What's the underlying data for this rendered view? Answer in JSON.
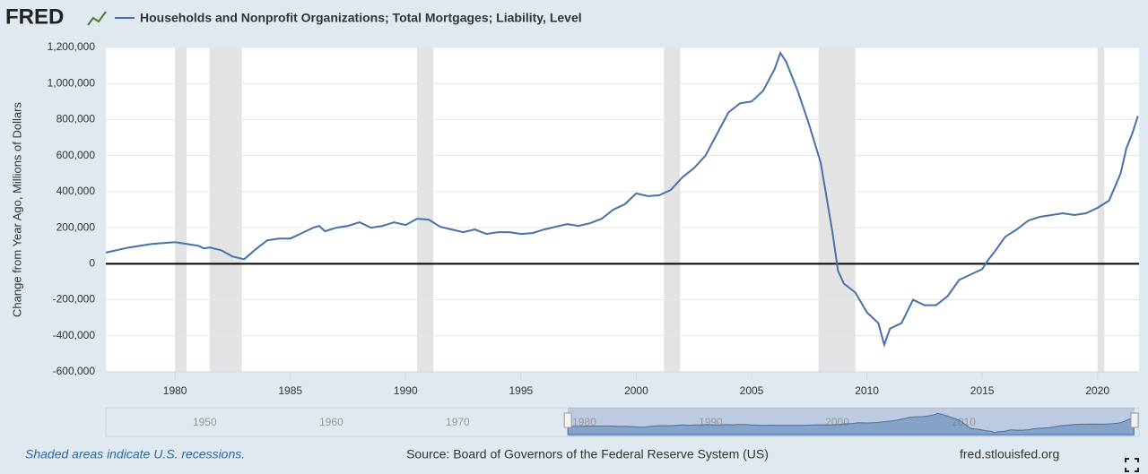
{
  "logo": "FRED",
  "note": "Shaded areas indicate U.S. recessions.",
  "source": "Source: Board of Governors of the Federal Reserve System (US)",
  "site": "fred.stlouisfed.org",
  "chart_data": {
    "type": "line",
    "ylabel": "Change from Year Ago, Millions of Dollars",
    "x": [
      1977,
      1978,
      1979,
      1980,
      1980.5,
      1981,
      1981.25,
      1981.5,
      1982,
      1982.5,
      1983,
      1983.5,
      1984,
      1984.5,
      1985,
      1985.5,
      1986,
      1986.25,
      1986.5,
      1987,
      1987.5,
      1988,
      1988.5,
      1989,
      1989.5,
      1990,
      1990.5,
      1991,
      1991.5,
      1992,
      1992.5,
      1993,
      1993.5,
      1994,
      1994.5,
      1995,
      1995.5,
      1996,
      1996.5,
      1997,
      1997.5,
      1998,
      1998.5,
      1999,
      1999.5,
      2000,
      2000.5,
      2001,
      2001.5,
      2002,
      2002.5,
      2003,
      2003.5,
      2004,
      2004.5,
      2005,
      2005.5,
      2006,
      2006.25,
      2006.5,
      2007,
      2007.5,
      2008,
      2008.5,
      2008.75,
      2009,
      2009.5,
      2010,
      2010.5,
      2010.75,
      2011,
      2011.5,
      2012,
      2012.5,
      2013,
      2013.5,
      2014,
      2014.5,
      2015,
      2015.25,
      2015.5,
      2016,
      2016.5,
      2017,
      2017.5,
      2018,
      2018.5,
      2019,
      2019.5,
      2020,
      2020.5,
      2021,
      2021.25,
      2021.5,
      2021.75
    ],
    "series": [
      {
        "name": "Households and Nonprofit Organizations; Total Mortgages; Liability, Level",
        "color": "#4572a7",
        "values": [
          62000,
          90000,
          110000,
          120000,
          110000,
          100000,
          85000,
          90000,
          75000,
          40000,
          25000,
          80000,
          130000,
          140000,
          140000,
          170000,
          200000,
          210000,
          180000,
          200000,
          210000,
          230000,
          200000,
          210000,
          230000,
          215000,
          250000,
          245000,
          205000,
          190000,
          175000,
          190000,
          165000,
          175000,
          175000,
          165000,
          170000,
          190000,
          205000,
          220000,
          210000,
          225000,
          250000,
          300000,
          330000,
          390000,
          375000,
          380000,
          410000,
          480000,
          530000,
          600000,
          720000,
          840000,
          890000,
          900000,
          960000,
          1080000,
          1170000,
          1120000,
          960000,
          770000,
          560000,
          180000,
          -40000,
          -110000,
          -160000,
          -270000,
          -330000,
          -450000,
          -360000,
          -330000,
          -200000,
          -230000,
          -230000,
          -180000,
          -90000,
          -60000,
          -30000,
          20000,
          60000,
          150000,
          190000,
          240000,
          260000,
          270000,
          280000,
          270000,
          280000,
          310000,
          350000,
          500000,
          640000,
          720000,
          820000
        ]
      }
    ],
    "recessions": [
      [
        1980,
        1980.5
      ],
      [
        1981.5,
        1982.9
      ],
      [
        1990.5,
        1991.2
      ],
      [
        2001.2,
        2001.9
      ],
      [
        2007.9,
        2009.5
      ],
      [
        2020,
        2020.3
      ]
    ],
    "xlim": [
      1977,
      2021.8
    ],
    "xticks": [
      1980,
      1985,
      1990,
      1995,
      2000,
      2005,
      2010,
      2015,
      2020
    ],
    "ylim": [
      -600000,
      1200000
    ],
    "yticks": [
      {
        "value": -600000,
        "label": "-600,000"
      },
      {
        "value": -400000,
        "label": "-400,000"
      },
      {
        "value": -200000,
        "label": "-200,000"
      },
      0,
      {
        "value": 200000,
        "label": "200,000"
      },
      {
        "value": 400000,
        "label": "400,000"
      },
      {
        "value": 600000,
        "label": "600,000"
      },
      {
        "value": 800000,
        "label": "800,000"
      },
      {
        "value": 1000000,
        "label": "1,000,000"
      },
      {
        "value": 1200000,
        "label": "1,200,000"
      }
    ],
    "grid": true,
    "navigator_xlim": [
      1947,
      2021.8
    ],
    "navigator_ticks": [
      1950,
      1960,
      1970,
      1980,
      1990,
      2000,
      2010
    ]
  }
}
